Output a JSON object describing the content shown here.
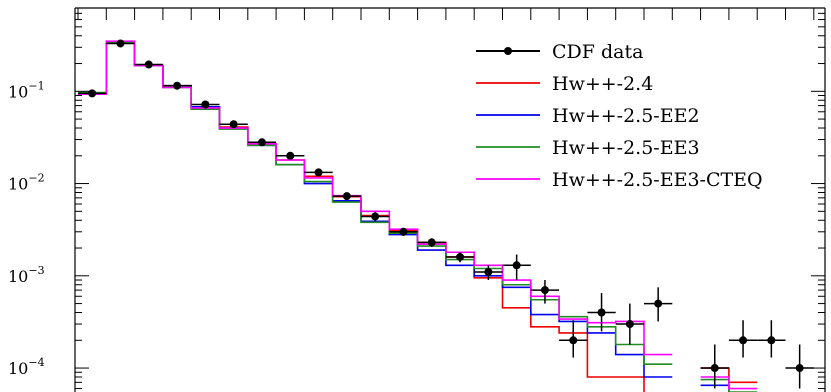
{
  "chart_data": {
    "type": "line",
    "y_scale": "log",
    "ylim": [
      5.5e-05,
      0.8
    ],
    "xlim": [
      0,
      25
    ],
    "x_edges": [
      0,
      1,
      2,
      3,
      4,
      5,
      6,
      7,
      8,
      9,
      10,
      11,
      12,
      13,
      14,
      15,
      16,
      17,
      18,
      19,
      20,
      21,
      22,
      23,
      24,
      25
    ],
    "y_ticks": [
      {
        "base": "10",
        "exp": "−1",
        "value": 0.1
      },
      {
        "base": "10",
        "exp": "−2",
        "value": 0.01
      },
      {
        "base": "10",
        "exp": "−3",
        "value": 0.001
      },
      {
        "base": "10",
        "exp": "−4",
        "value": 0.0001
      }
    ],
    "legend_position": "top-right",
    "data_series": {
      "name": "CDF data",
      "color": "#000000",
      "points": [
        {
          "x": 0.5,
          "y": 0.095,
          "yerr": [
            0.008,
            0.008
          ]
        },
        {
          "x": 1.5,
          "y": 0.33,
          "yerr": [
            0.02,
            0.02
          ]
        },
        {
          "x": 2.5,
          "y": 0.195,
          "yerr": [
            0.012,
            0.012
          ]
        },
        {
          "x": 3.5,
          "y": 0.115,
          "yerr": [
            0.008,
            0.008
          ]
        },
        {
          "x": 4.5,
          "y": 0.072,
          "yerr": [
            0.005,
            0.005
          ]
        },
        {
          "x": 5.5,
          "y": 0.044,
          "yerr": [
            0.003,
            0.003
          ]
        },
        {
          "x": 6.5,
          "y": 0.028,
          "yerr": [
            0.002,
            0.002
          ]
        },
        {
          "x": 7.5,
          "y": 0.02,
          "yerr": [
            0.0015,
            0.0015
          ]
        },
        {
          "x": 8.5,
          "y": 0.0132,
          "yerr": [
            0.001,
            0.001
          ]
        },
        {
          "x": 9.5,
          "y": 0.0073,
          "yerr": [
            0.0006,
            0.0006
          ]
        },
        {
          "x": 10.5,
          "y": 0.0044,
          "yerr": [
            0.0005,
            0.0005
          ]
        },
        {
          "x": 11.5,
          "y": 0.003,
          "yerr": [
            0.0003,
            0.0003
          ]
        },
        {
          "x": 12.5,
          "y": 0.0023,
          "yerr": [
            0.00025,
            0.00025
          ]
        },
        {
          "x": 13.5,
          "y": 0.0016,
          "yerr": [
            0.0002,
            0.0002
          ]
        },
        {
          "x": 14.5,
          "y": 0.0011,
          "yerr": [
            0.0002,
            0.0002
          ]
        },
        {
          "x": 15.5,
          "y": 0.0013,
          "yerr": [
            0.0004,
            0.0004
          ]
        },
        {
          "x": 16.5,
          "y": 0.0007,
          "yerr": [
            0.0002,
            0.0002
          ]
        },
        {
          "x": 17.5,
          "y": 0.0002,
          "yerr": [
            7e-05,
            0.00013
          ]
        },
        {
          "x": 18.5,
          "y": 0.0004,
          "yerr": [
            0.00015,
            0.00025
          ]
        },
        {
          "x": 19.5,
          "y": 0.0003,
          "yerr": [
            0.00012,
            0.0002
          ]
        },
        {
          "x": 20.5,
          "y": 0.0005,
          "yerr": [
            0.00018,
            0.00025
          ]
        },
        {
          "x": 22.5,
          "y": 0.0001,
          "yerr": [
            4e-05,
            8e-05
          ]
        },
        {
          "x": 23.5,
          "y": 0.0002,
          "yerr": [
            7e-05,
            0.00013
          ]
        },
        {
          "x": 24.5,
          "y": 0.0002,
          "yerr": [
            7e-05,
            0.00013
          ]
        },
        {
          "x": 25.5,
          "y": 0.0001,
          "yerr": [
            4e-05,
            8e-05
          ]
        }
      ]
    },
    "series": [
      {
        "name": "Hw++-2.4",
        "color": "#ee0000",
        "values": [
          0.095,
          0.34,
          0.19,
          0.115,
          0.068,
          0.041,
          0.027,
          0.018,
          0.012,
          0.0072,
          0.0045,
          0.0031,
          0.0023,
          0.0016,
          0.00095,
          0.00045,
          0.00028,
          0.00024,
          8e-05,
          8e-05,
          4.5e-05,
          null,
          0.0001,
          7e-05,
          null
        ]
      },
      {
        "name": "Hw++-2.5-EE2",
        "color": "#0000ee",
        "values": [
          0.095,
          0.34,
          0.19,
          0.115,
          0.068,
          0.04,
          0.026,
          0.016,
          0.01,
          0.0065,
          0.0039,
          0.0028,
          0.0019,
          0.0013,
          0.001,
          0.00075,
          0.00038,
          0.00032,
          0.00024,
          0.00014,
          8e-05,
          null,
          6.5e-05,
          5e-05,
          null
        ]
      },
      {
        "name": "Hw++-2.5-EE3",
        "color": "#228b22",
        "values": [
          0.097,
          0.34,
          0.19,
          0.11,
          0.064,
          0.039,
          0.026,
          0.016,
          0.0105,
          0.0063,
          0.0038,
          0.0029,
          0.0021,
          0.0015,
          0.0012,
          0.0008,
          0.00055,
          0.00036,
          0.00028,
          0.00018,
          0.00011,
          null,
          7.5e-05,
          5.5e-05,
          null
        ]
      },
      {
        "name": "Hw++-2.5-EE3-CTEQ",
        "color": "#ff00ff",
        "values": [
          0.093,
          0.35,
          0.19,
          0.11,
          0.066,
          0.04,
          0.027,
          0.018,
          0.0115,
          0.0074,
          0.005,
          0.0032,
          0.0022,
          0.0018,
          0.0013,
          0.0009,
          0.0006,
          0.00034,
          0.00031,
          0.00032,
          0.00014,
          null,
          8e-05,
          6e-05,
          null
        ]
      }
    ]
  }
}
